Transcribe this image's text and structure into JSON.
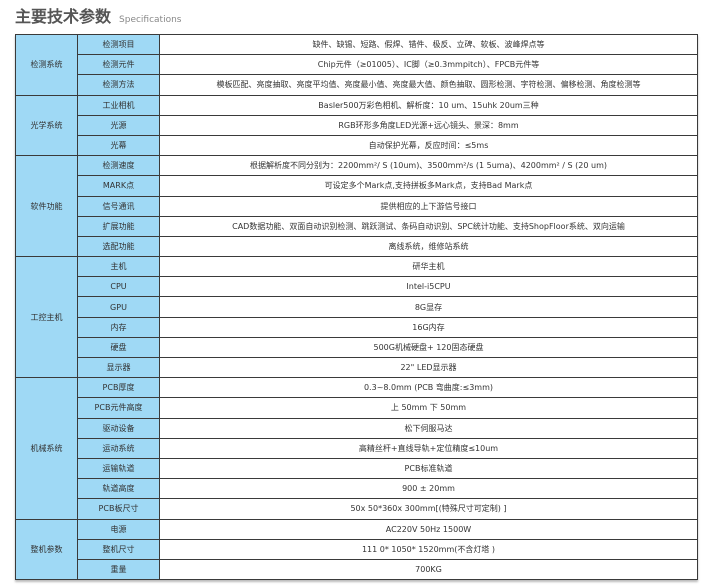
{
  "header": {
    "title": "主要技术参数",
    "subtitle": "Specifications"
  },
  "groups": [
    {
      "name": "检测系统",
      "rows": [
        {
          "label": "检测项目",
          "value": "缺件、缺锡、短路、假焊、错件、极反、立碑、软板、波峰焊点等"
        },
        {
          "label": "检测元件",
          "value": "Chip元件（≥01005）、IC脚（≥0.3mmpitch）、FPCB元件等"
        },
        {
          "label": "检测方法",
          "value": "模板匹配、亮度抽取、亮度平均值、亮度最小值、亮度最大值、颜色抽取、圆形检测、字符检测、偏移检测、角度检测等"
        }
      ]
    },
    {
      "name": "光学系统",
      "rows": [
        {
          "label": "工业相机",
          "value": "Basler500万彩色相机、解析度：10 um、15uhk 20um三种"
        },
        {
          "label": "光源",
          "value": "RGB环形多角度LED光源+远心镜头、景深：8mm"
        },
        {
          "label": "光幕",
          "value": "自动保护光幕，反应时间：≤5ms"
        }
      ]
    },
    {
      "name": "软件功能",
      "rows": [
        {
          "label": "检测速度",
          "value": "根据解析度不同分别为：2200mm²/ S (10um)、3500mm²/s (1 5uma)、4200mm² / S (20 um)"
        },
        {
          "label": "MARK点",
          "value": "可设定多个Mark点,支持拼板多Mark点，支持Bad Mark点"
        },
        {
          "label": "信号通讯",
          "value": "提供相应的上下游信号接口"
        },
        {
          "label": "扩展功能",
          "value": "CAD数据功能、双面自动识别检测、跳跃测试、条码自动识别、SPC统计功能、支持ShopFloor系统、双向运输"
        },
        {
          "label": "选配功能",
          "value": "离线系统，维修站系统"
        }
      ]
    },
    {
      "name": "工控主机",
      "rows": [
        {
          "label": "主机",
          "value": "研华主机"
        },
        {
          "label": "CPU",
          "value": "Intel-i5CPU"
        },
        {
          "label": "GPU",
          "value": "8G显存"
        },
        {
          "label": "内存",
          "value": "16G内存"
        },
        {
          "label": "硬盘",
          "value": "500G机械硬盘+ 120固态硬盘"
        },
        {
          "label": "显示器",
          "value": "22\" LED显示器"
        }
      ]
    },
    {
      "name": "机械系统",
      "rows": [
        {
          "label": "PCB厚度",
          "value": "0.3~8.0mm (PCB 弯曲度:≤3mm)"
        },
        {
          "label": "PCB元件高度",
          "value": "上 50mm 下 50mm"
        },
        {
          "label": "驱动设备",
          "value": "松下伺服马达"
        },
        {
          "label": "运动系统",
          "value": "高精丝杆+直线导轨+定位精度≤10um"
        },
        {
          "label": "运输轨道",
          "value": "PCB标准轨道"
        },
        {
          "label": "轨道高度",
          "value": "900 ± 20mm"
        },
        {
          "label": "PCB板尺寸",
          "value": "50x 50*360x 300mm[(特殊尺寸可定制) ]"
        }
      ]
    },
    {
      "name": "整机参数",
      "rows": [
        {
          "label": "电源",
          "value": "AC220V 50Hz 1500W"
        },
        {
          "label": "整机尺寸",
          "value": "111 0* 1050* 1520mm(不含灯塔 )"
        },
        {
          "label": "重量",
          "value": "700KG"
        }
      ]
    }
  ]
}
